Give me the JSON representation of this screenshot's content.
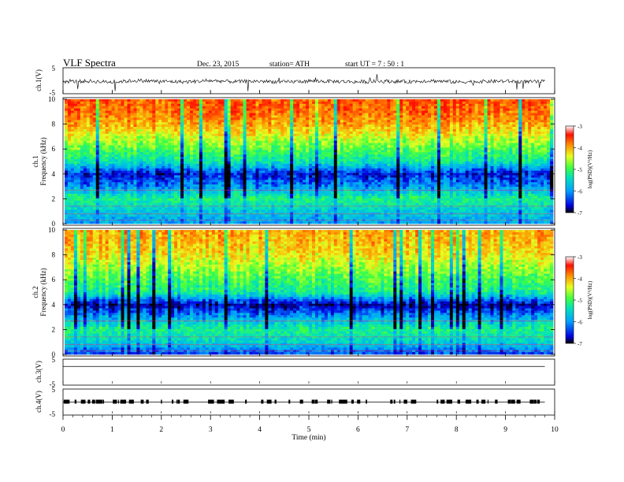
{
  "header": {
    "title": "VLF  Spectra",
    "date": "Dec. 23,  2015",
    "station": "station= ATH",
    "start": "start  UT  =    7  : 50 : 1"
  },
  "colors": {
    "background": "#ffffff",
    "axis": "#000000",
    "colormap": [
      "#000000",
      "#0000e0",
      "#00a0ff",
      "#00e0c0",
      "#40ff40",
      "#e8ff20",
      "#ff9000",
      "#ff1000",
      "#ffffff"
    ]
  },
  "chart_data": [
    {
      "type": "line",
      "panel": "ch1-waveform",
      "ylabel": "ch.1(V)",
      "ylim": [
        -5,
        5
      ],
      "y_ticks": [
        "5",
        "-5"
      ],
      "x": [
        0,
        0.5,
        1,
        1.5,
        2,
        2.5,
        3,
        3.5,
        4,
        4.5,
        5,
        5.5,
        6,
        6.5,
        7,
        7.5,
        8,
        8.5,
        9,
        9.5,
        9.8
      ],
      "y": [
        -0.4,
        -0.2,
        -0.6,
        0.1,
        -0.3,
        -0.5,
        0.0,
        -0.4,
        -0.2,
        -0.6,
        -0.1,
        -0.3,
        -0.5,
        -0.2,
        -0.4,
        0.0,
        -0.6,
        -0.3,
        -0.2,
        -0.5,
        -0.3
      ]
    },
    {
      "type": "heatmap",
      "panel": "ch1-spectrogram",
      "ylabel": "ch.1\nFrequency  (kHz)",
      "ylim": [
        0,
        10
      ],
      "y_ticks": [
        "10",
        "8",
        "6",
        "4",
        "2",
        "0"
      ],
      "colorbar": {
        "label": "log(PSD)(V²/Hz)",
        "range": [
          -7,
          -3
        ],
        "ticks": [
          "-3",
          "-4",
          "-5",
          "-6",
          "-7"
        ]
      },
      "frequency_profile_khz": [
        0,
        1,
        2,
        3,
        4,
        5,
        6,
        7,
        8,
        9,
        10
      ],
      "log_psd_profile": [
        -5.8,
        -5.5,
        -5.0,
        -5.9,
        -6.4,
        -5.2,
        -4.7,
        -4.2,
        -3.7,
        -3.4,
        -3.3
      ]
    },
    {
      "type": "heatmap",
      "panel": "ch2-spectrogram",
      "ylabel": "ch.2\nFrequency  (kHz)",
      "ylim": [
        0,
        10
      ],
      "y_ticks": [
        "10",
        "8",
        "6",
        "4",
        "2",
        "0"
      ],
      "colorbar": {
        "label": "log(PSD)(V²/Hz)",
        "range": [
          -7,
          -3
        ],
        "ticks": [
          "-3",
          "-4",
          "-5",
          "-6",
          "-7"
        ]
      },
      "frequency_profile_khz": [
        0,
        1,
        2,
        3,
        4,
        5,
        6,
        7,
        8,
        9,
        10
      ],
      "log_psd_profile": [
        -6.2,
        -5.4,
        -5.0,
        -5.8,
        -6.6,
        -5.1,
        -4.8,
        -4.4,
        -4.0,
        -3.8,
        -3.7
      ]
    },
    {
      "type": "line",
      "panel": "ch3-waveform",
      "ylabel": "ch.3(V)",
      "ylim": [
        -5,
        5
      ],
      "y_ticks": [
        "5",
        "-5"
      ],
      "x": [
        0,
        9.8
      ],
      "y": [
        2.5,
        2.5
      ]
    },
    {
      "type": "line",
      "panel": "ch4-waveform",
      "ylabel": "ch.4(V)",
      "ylim": [
        -5,
        5
      ],
      "y_ticks": [
        "5",
        "-5"
      ],
      "x": [
        0,
        9.8
      ],
      "y": [
        0.0,
        0.0
      ]
    }
  ],
  "x_axis": {
    "label": "Time  (min)",
    "xlim": [
      0,
      10
    ],
    "ticks": [
      "0",
      "1",
      "2",
      "3",
      "4",
      "5",
      "6",
      "7",
      "8",
      "9",
      "10"
    ]
  }
}
